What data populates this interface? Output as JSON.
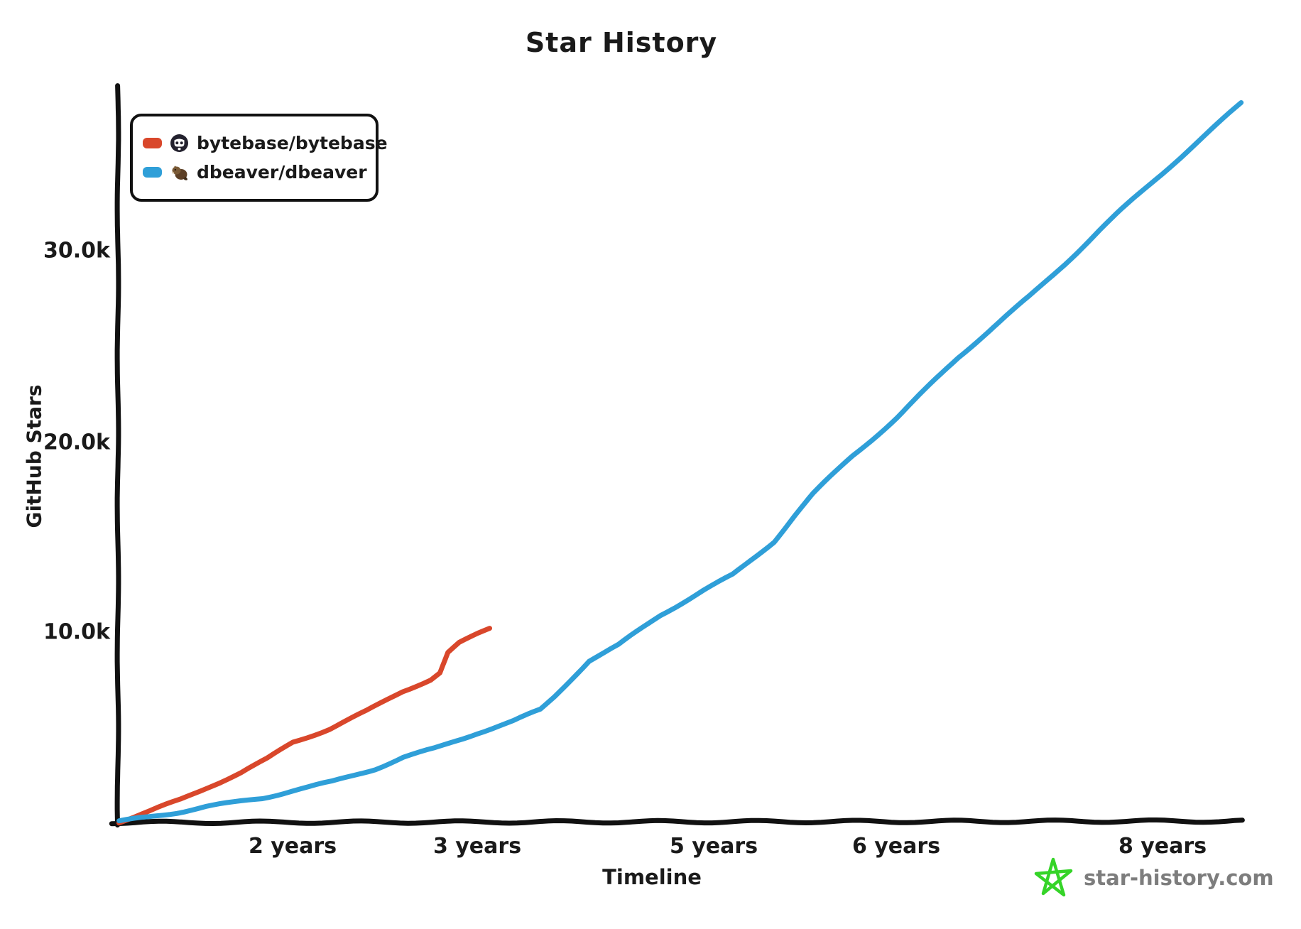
{
  "title": "Star History",
  "legend": {
    "items": [
      {
        "label": "bytebase/bytebase",
        "color": "#d9472b",
        "icon": "bytebase-avatar"
      },
      {
        "label": "dbeaver/dbeaver",
        "color": "#2f9fd8",
        "icon": "dbeaver-avatar"
      }
    ]
  },
  "axes": {
    "y_label": "GitHub Stars",
    "x_label": "Timeline",
    "y_ticks": [
      "10.0k",
      "20.0k",
      "30.0k"
    ],
    "x_ticks": [
      "2 years",
      "3 years",
      "5 years",
      "6 years",
      "8 years"
    ]
  },
  "watermark": {
    "text": "star-history.com",
    "icon": "star-icon",
    "star_color": "#35d428",
    "text_color": "#7d7d7d"
  },
  "colors": {
    "axis": "#111111",
    "bytebase_line": "#d9472b",
    "dbeaver_line": "#2f9fd8"
  },
  "chart_data": {
    "type": "line",
    "title": "Star History",
    "xlabel": "Timeline",
    "ylabel": "GitHub Stars",
    "x_unit": "years since first star",
    "y_unit": "stars",
    "ylim": [
      0,
      38500
    ],
    "xlim_years": [
      0,
      8.6
    ],
    "grid": false,
    "legend_position": "top-left",
    "y_tick_values": [
      10000,
      20000,
      30000
    ],
    "x_tick_values": [
      2,
      3,
      5,
      6,
      8
    ],
    "x_tick_labels": [
      "2 years",
      "3 years",
      "5 years",
      "6 years",
      "8 years"
    ],
    "series": [
      {
        "name": "bytebase/bytebase",
        "color": "#d9472b",
        "points": [
          [
            0,
            0
          ],
          [
            0.35,
            550
          ],
          [
            0.7,
            1150
          ],
          [
            1.0,
            1800
          ],
          [
            1.4,
            2600
          ],
          [
            1.7,
            3300
          ],
          [
            2.0,
            4200
          ],
          [
            2.2,
            4900
          ],
          [
            2.4,
            5800
          ],
          [
            2.6,
            6900
          ],
          [
            2.75,
            7500
          ],
          [
            2.8,
            7850
          ],
          [
            2.84,
            8900
          ],
          [
            2.9,
            9400
          ],
          [
            3.0,
            9900
          ],
          [
            3.1,
            10200
          ]
        ]
      },
      {
        "name": "dbeaver/dbeaver",
        "color": "#2f9fd8",
        "points": [
          [
            0,
            0
          ],
          [
            0.35,
            250
          ],
          [
            0.67,
            500
          ],
          [
            1.0,
            800
          ],
          [
            1.33,
            1000
          ],
          [
            1.66,
            1250
          ],
          [
            2.0,
            1650
          ],
          [
            2.22,
            2100
          ],
          [
            2.45,
            2800
          ],
          [
            2.6,
            3400
          ],
          [
            2.77,
            3850
          ],
          [
            2.92,
            4400
          ],
          [
            3.0,
            4700
          ],
          [
            3.3,
            5300
          ],
          [
            3.53,
            5900
          ],
          [
            3.65,
            6600
          ],
          [
            3.79,
            7500
          ],
          [
            3.95,
            8500
          ],
          [
            4.2,
            9300
          ],
          [
            4.55,
            10900
          ],
          [
            4.91,
            12200
          ],
          [
            5.1,
            13000
          ],
          [
            5.33,
            14800
          ],
          [
            5.45,
            16200
          ],
          [
            5.55,
            17300
          ],
          [
            5.76,
            19300
          ],
          [
            6.0,
            21300
          ],
          [
            6.47,
            24500
          ],
          [
            7.0,
            27700
          ],
          [
            7.53,
            31200
          ],
          [
            8.0,
            34200
          ],
          [
            8.59,
            37900
          ]
        ]
      }
    ]
  }
}
